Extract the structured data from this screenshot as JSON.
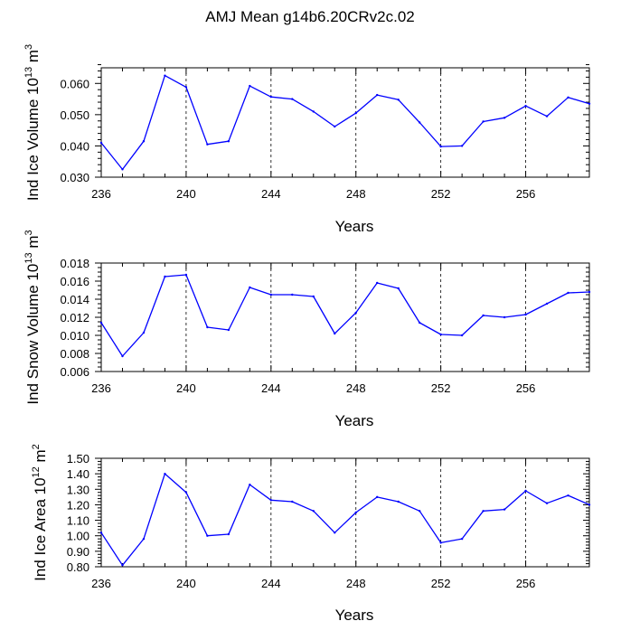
{
  "title": "AMJ Mean g14b6.20CRv2c.02",
  "line_color": "#0000ff",
  "chart_data": [
    {
      "type": "line",
      "xlabel": "Years",
      "ylabel_pre": "Ind Ice Volume 10",
      "ylabel_exp": "13",
      "ylabel_unit": " m",
      "ylabel_unit_exp": "3",
      "xlim": [
        236,
        259
      ],
      "ylim": [
        0.03,
        0.065
      ],
      "yticks": [
        0.03,
        0.04,
        0.05,
        0.06
      ],
      "ytick_labels": [
        "0.030",
        "0.040",
        "0.050",
        "0.060"
      ],
      "yminor_step": 0.002,
      "xticks": [
        236,
        240,
        244,
        248,
        252,
        256
      ],
      "xtick_labels": [
        "236",
        "240",
        "244",
        "248",
        "252",
        "256"
      ],
      "x": [
        236,
        237,
        238,
        239,
        240,
        241,
        242,
        243,
        244,
        245,
        246,
        247,
        248,
        249,
        250,
        251,
        252,
        253,
        254,
        255,
        256,
        257,
        258,
        259
      ],
      "values": [
        0.041,
        0.0325,
        0.0415,
        0.0625,
        0.0588,
        0.0405,
        0.0415,
        0.0592,
        0.0557,
        0.055,
        0.051,
        0.0462,
        0.0505,
        0.0563,
        0.0548,
        0.0475,
        0.0398,
        0.04,
        0.0478,
        0.049,
        0.0528,
        0.0495,
        0.0555,
        0.0535
      ]
    },
    {
      "type": "line",
      "xlabel": "Years",
      "ylabel_pre": "Ind Snow Volume 10",
      "ylabel_exp": "13",
      "ylabel_unit": " m",
      "ylabel_unit_exp": "3",
      "xlim": [
        236,
        259
      ],
      "ylim": [
        0.006,
        0.018
      ],
      "yticks": [
        0.006,
        0.008,
        0.01,
        0.012,
        0.014,
        0.016,
        0.018
      ],
      "ytick_labels": [
        "0.006",
        "0.008",
        "0.010",
        "0.012",
        "0.014",
        "0.016",
        "0.018"
      ],
      "yminor_step": 0.0005,
      "xticks": [
        236,
        240,
        244,
        248,
        252,
        256
      ],
      "xtick_labels": [
        "236",
        "240",
        "244",
        "248",
        "252",
        "256"
      ],
      "x": [
        236,
        237,
        238,
        239,
        240,
        241,
        242,
        243,
        244,
        245,
        246,
        247,
        248,
        249,
        250,
        251,
        252,
        253,
        254,
        255,
        256,
        257,
        258,
        259
      ],
      "values": [
        0.0114,
        0.0077,
        0.0103,
        0.0165,
        0.0167,
        0.0109,
        0.0106,
        0.0153,
        0.0145,
        0.0145,
        0.0143,
        0.0102,
        0.0125,
        0.0158,
        0.0152,
        0.0114,
        0.0101,
        0.01,
        0.0122,
        0.012,
        0.0123,
        0.0135,
        0.0147,
        0.0148
      ]
    },
    {
      "type": "line",
      "xlabel": "Years",
      "ylabel_pre": "Ind Ice Area 10",
      "ylabel_exp": "12",
      "ylabel_unit": " m",
      "ylabel_unit_exp": "2",
      "xlim": [
        236,
        259
      ],
      "ylim": [
        0.8,
        1.5
      ],
      "yticks": [
        0.8,
        0.9,
        1.0,
        1.1,
        1.2,
        1.3,
        1.4,
        1.5
      ],
      "ytick_labels": [
        "0.80",
        "0.90",
        "1.00",
        "1.10",
        "1.20",
        "1.30",
        "1.40",
        "1.50"
      ],
      "yminor_step": 0.02,
      "xticks": [
        236,
        240,
        244,
        248,
        252,
        256
      ],
      "xtick_labels": [
        "236",
        "240",
        "244",
        "248",
        "252",
        "256"
      ],
      "x": [
        236,
        237,
        238,
        239,
        240,
        241,
        242,
        243,
        244,
        245,
        246,
        247,
        248,
        249,
        250,
        251,
        252,
        253,
        254,
        255,
        256,
        257,
        258,
        259
      ],
      "values": [
        1.02,
        0.81,
        0.98,
        1.4,
        1.28,
        1.0,
        1.01,
        1.33,
        1.23,
        1.22,
        1.16,
        1.02,
        1.15,
        1.25,
        1.22,
        1.16,
        0.955,
        0.98,
        1.16,
        1.17,
        1.29,
        1.21,
        1.26,
        1.2
      ]
    }
  ]
}
